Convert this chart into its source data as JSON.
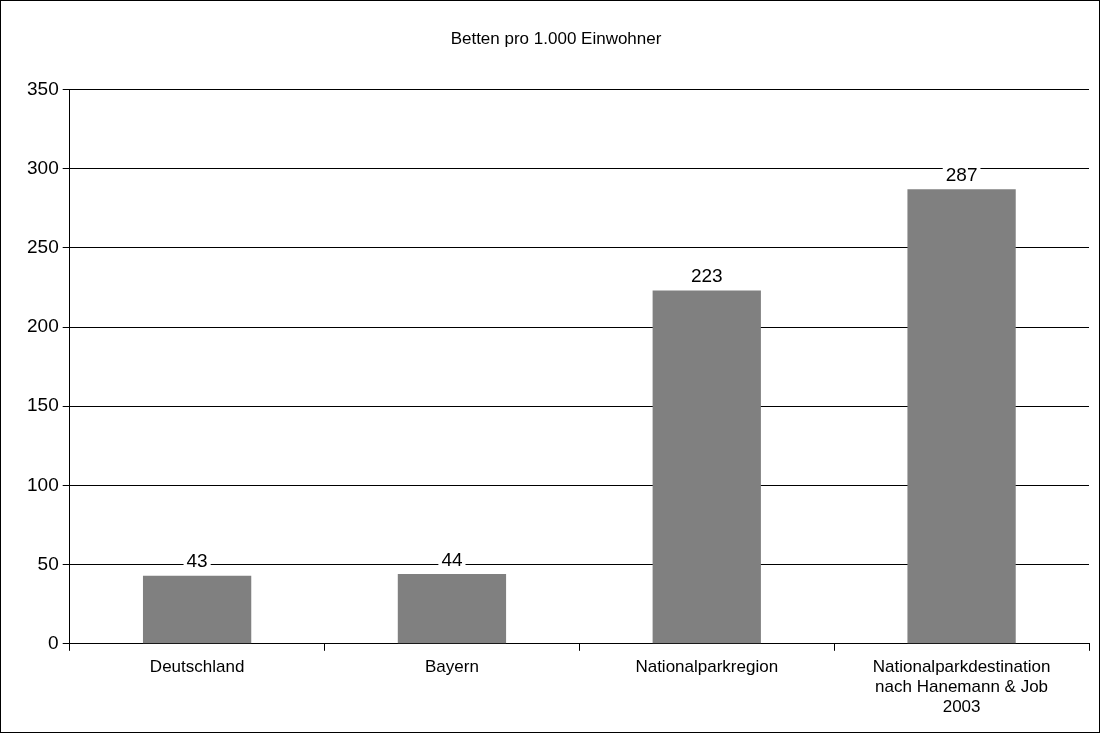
{
  "chart_data": {
    "type": "bar",
    "title": "Betten pro 1.000 Einwohner",
    "categories": [
      "Deutschland",
      "Bayern",
      "Nationalparkregion",
      "Nationalparkdestination nach Hanemann & Job 2003"
    ],
    "values": [
      43,
      44,
      223,
      287
    ],
    "color": "#808080",
    "ylim": [
      0,
      350
    ],
    "yticks": [
      0,
      50,
      100,
      150,
      200,
      250,
      300,
      350
    ],
    "grid": "y",
    "data_labels": true,
    "legend": false
  }
}
